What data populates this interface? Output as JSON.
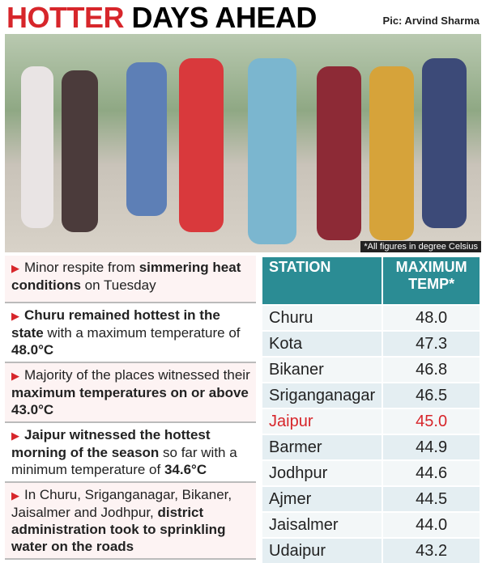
{
  "header": {
    "title_red": "HOTTER",
    "title_black": "DAYS AHEAD",
    "credit": "Pic: Arvind Sharma"
  },
  "photo_note": "*All figures in degree Celsius",
  "bullets": [
    [
      {
        "text": "Minor respite from ",
        "bold": false
      },
      {
        "text": "simmering heat conditions",
        "bold": true
      },
      {
        "text": " on Tuesday",
        "bold": false
      }
    ],
    [
      {
        "text": "Churu remained hottest in the state",
        "bold": true
      },
      {
        "text": " with a maximum temperature of ",
        "bold": false
      },
      {
        "text": "48.0°C",
        "bold": true
      }
    ],
    [
      {
        "text": "Majority of the places witnessed their ",
        "bold": false
      },
      {
        "text": "maximum temperatures on or above 43.0°C",
        "bold": true
      }
    ],
    [
      {
        "text": "Jaipur witnessed the hottest morning of the season",
        "bold": true
      },
      {
        "text": " so far with a minimum temperature of ",
        "bold": false
      },
      {
        "text": "34.6°C",
        "bold": true
      }
    ],
    [
      {
        "text": "In Churu, Sriganganagar, Bikaner, Jaisalmer and Jodhpur, ",
        "bold": false
      },
      {
        "text": "district administration took to sprinkling water on the roads",
        "bold": true
      }
    ]
  ],
  "table": {
    "header": [
      "STATION",
      "MAXIMUM TEMP*"
    ],
    "rows": [
      {
        "station": "Churu",
        "temp": "48.0"
      },
      {
        "station": "Kota",
        "temp": "47.3"
      },
      {
        "station": "Bikaner",
        "temp": "46.8"
      },
      {
        "station": "Sriganganagar",
        "temp": "46.5"
      },
      {
        "station": "Jaipur",
        "temp": "45.0",
        "highlight": true
      },
      {
        "station": "Barmer",
        "temp": "44.9"
      },
      {
        "station": "Jodhpur",
        "temp": "44.6"
      },
      {
        "station": "Ajmer",
        "temp": "44.5"
      },
      {
        "station": "Jaisalmer",
        "temp": "44.0"
      },
      {
        "station": "Udaipur",
        "temp": "43.2"
      }
    ]
  }
}
